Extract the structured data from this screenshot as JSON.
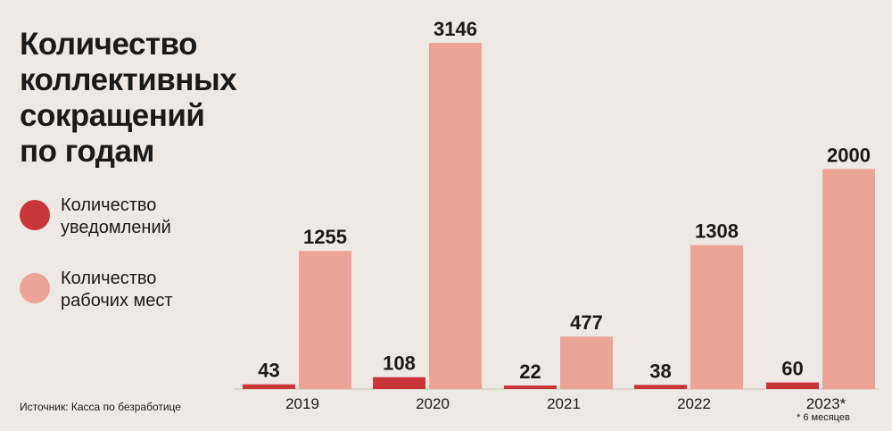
{
  "title_lines": [
    "Количество",
    "коллективных",
    "сокращений",
    "по годам"
  ],
  "legend": [
    {
      "lines": [
        "Количество",
        "уведомлений"
      ],
      "color": "#c8363a"
    },
    {
      "lines": [
        "Количество",
        "рабочих мест"
      ],
      "color": "#eba495"
    }
  ],
  "source": "Источник: Касса по безработице",
  "footnote": "* 6 месяцев",
  "chart_data": {
    "type": "bar",
    "title": "Количество коллективных сокращений по годам",
    "categories": [
      "2019",
      "2020",
      "2021",
      "2022",
      "2023*"
    ],
    "series": [
      {
        "name": "Количество уведомлений",
        "values": [
          43,
          108,
          22,
          38,
          60
        ],
        "color": "#c8363a"
      },
      {
        "name": "Количество рабочих мест",
        "values": [
          1255,
          3146,
          477,
          1308,
          2000
        ],
        "color": "#eba495"
      }
    ],
    "xlabel": "",
    "ylabel": "",
    "grid": false,
    "legend_position": "left"
  }
}
